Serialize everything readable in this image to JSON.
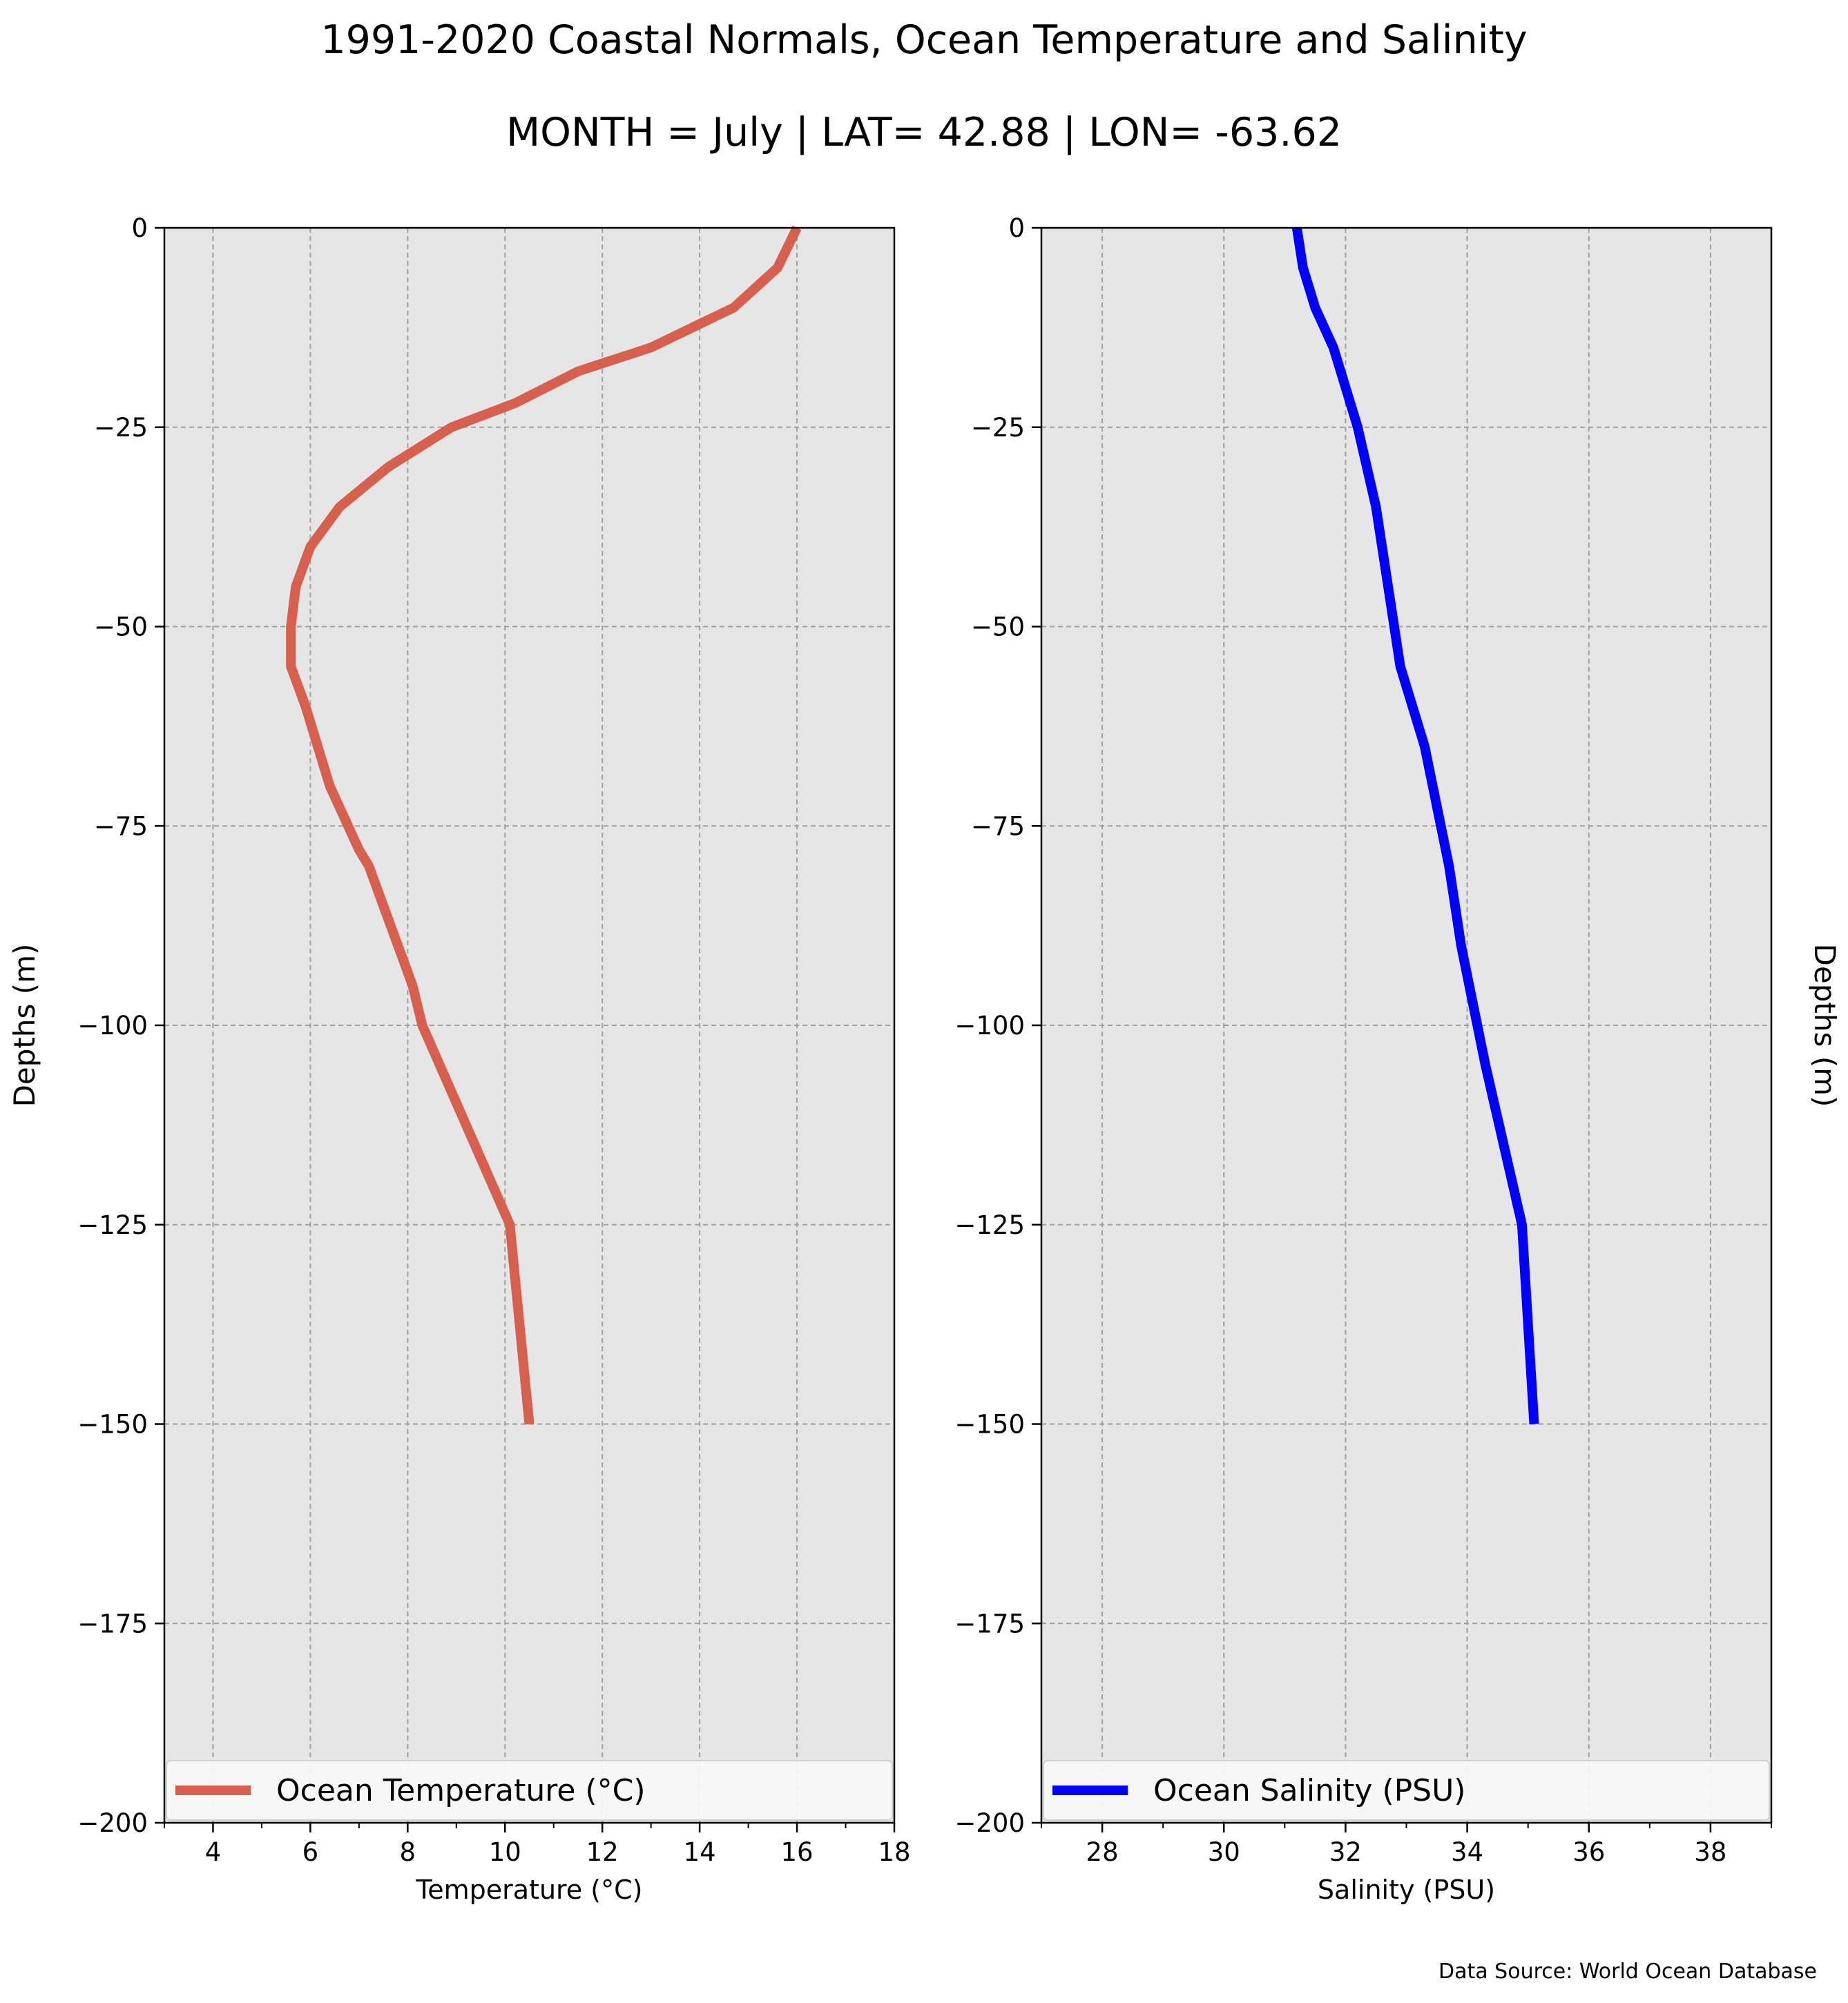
{
  "figure": {
    "title": "1991-2020 Coastal Normals, Ocean Temperature and Salinity",
    "subtitle": "MONTH = July | LAT= 42.88 | LON= -63.62",
    "source": "Data Source: World Ocean Database"
  },
  "colors": {
    "temperature_line": "#d65f4d",
    "salinity_line": "#0000ff",
    "plot_background": "#e6e6e6",
    "grid": "#a0a0a0"
  },
  "chart_data": [
    {
      "type": "line",
      "xlabel": "Temperature ($^\\circ$C)",
      "xlabel_display": "Temperature (°C)",
      "ylabel": "Depths (m)",
      "xlim": [
        3,
        18
      ],
      "ylim": [
        -200,
        0
      ],
      "x_ticks": [
        4,
        6,
        8,
        10,
        12,
        14,
        16,
        18
      ],
      "y_ticks": [
        0,
        -25,
        -50,
        -75,
        -100,
        -125,
        -150,
        -175,
        -200
      ],
      "grid": true,
      "legend_position": "bottom",
      "series": [
        {
          "name": "Ocean Temperature (°C)",
          "color": "#d65f4d",
          "points": [
            {
              "x": 16.0,
              "y": 0
            },
            {
              "x": 15.6,
              "y": -5
            },
            {
              "x": 14.7,
              "y": -10
            },
            {
              "x": 13.0,
              "y": -15
            },
            {
              "x": 11.5,
              "y": -18
            },
            {
              "x": 10.2,
              "y": -22
            },
            {
              "x": 8.9,
              "y": -25
            },
            {
              "x": 7.6,
              "y": -30
            },
            {
              "x": 6.6,
              "y": -35
            },
            {
              "x": 6.0,
              "y": -40
            },
            {
              "x": 5.7,
              "y": -45
            },
            {
              "x": 5.6,
              "y": -50
            },
            {
              "x": 5.6,
              "y": -55
            },
            {
              "x": 5.9,
              "y": -60
            },
            {
              "x": 6.4,
              "y": -70
            },
            {
              "x": 7.0,
              "y": -78
            },
            {
              "x": 7.2,
              "y": -80
            },
            {
              "x": 7.5,
              "y": -85
            },
            {
              "x": 8.1,
              "y": -95
            },
            {
              "x": 8.3,
              "y": -100
            },
            {
              "x": 10.1,
              "y": -125
            },
            {
              "x": 10.5,
              "y": -150
            }
          ]
        }
      ]
    },
    {
      "type": "line",
      "xlabel": "Salinity (PSU)",
      "ylabel": "Depths (m)",
      "xlim": [
        27,
        39
      ],
      "ylim": [
        -200,
        0
      ],
      "x_ticks": [
        28,
        30,
        32,
        34,
        36,
        38
      ],
      "y_ticks": [
        0,
        -25,
        -50,
        -75,
        -100,
        -125,
        -150,
        -175,
        -200
      ],
      "grid": true,
      "legend_position": "bottom",
      "series": [
        {
          "name": "Ocean Salinity (PSU)",
          "color": "#0000ff",
          "points": [
            {
              "x": 31.2,
              "y": 0
            },
            {
              "x": 31.3,
              "y": -5
            },
            {
              "x": 31.5,
              "y": -10
            },
            {
              "x": 31.8,
              "y": -15
            },
            {
              "x": 32.0,
              "y": -20
            },
            {
              "x": 32.2,
              "y": -25
            },
            {
              "x": 32.5,
              "y": -35
            },
            {
              "x": 32.9,
              "y": -55
            },
            {
              "x": 33.3,
              "y": -65
            },
            {
              "x": 33.7,
              "y": -80
            },
            {
              "x": 33.9,
              "y": -90
            },
            {
              "x": 34.3,
              "y": -105
            },
            {
              "x": 34.9,
              "y": -125
            },
            {
              "x": 35.1,
              "y": -150
            }
          ]
        }
      ]
    }
  ]
}
